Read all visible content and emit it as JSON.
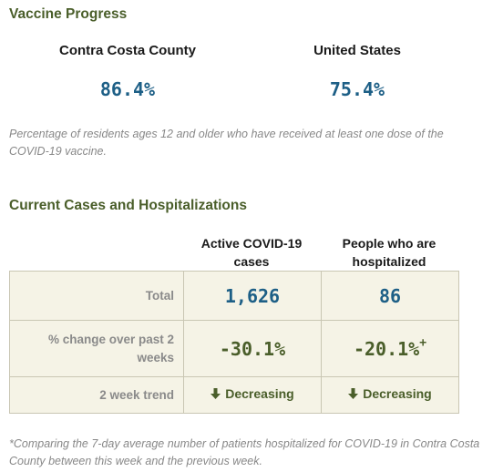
{
  "vaccine": {
    "title": "Vaccine Progress",
    "county": {
      "label": "Contra Costa County",
      "value": "86.4%"
    },
    "us": {
      "label": "United States",
      "value": "75.4%"
    },
    "note": "Percentage of residents ages 12 and older who have received at least one dose of the COVID-19 vaccine."
  },
  "cases": {
    "title": "Current Cases and Hospitalizations",
    "columns": {
      "active": "Active COVID-19 cases",
      "hospitalized": "People who are hospitalized"
    },
    "rows": {
      "total": {
        "label": "Total",
        "active": "1,626",
        "hospitalized": "86"
      },
      "change": {
        "label": "% change over past 2 weeks",
        "active": "-30.1%",
        "hospitalized": "-20.1%",
        "hospitalized_marker": "+"
      },
      "trend": {
        "label": "2 week trend",
        "active": "Decreasing",
        "hospitalized": "Decreasing",
        "icon": "down-arrow-icon"
      }
    },
    "footnote": "*Comparing the 7-day average number of patients hospitalized for COVID-19 in Contra Costa County between this week and the previous week."
  },
  "colors": {
    "heading_green": "#4a5e2a",
    "value_blue": "#1d5f86",
    "table_bg": "#f5f3e6",
    "border": "#c9c6b3"
  }
}
